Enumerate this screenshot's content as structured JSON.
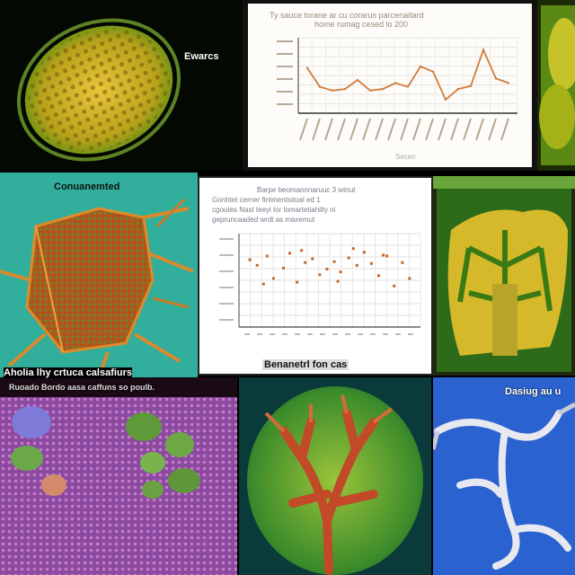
{
  "panels": {
    "p1": {
      "caption": "Ewarcs"
    },
    "p2": {
      "title_line1": "Ty sauce torane ar cu corarus parcenaitard",
      "title_line2": "home rumag cesed lo 200",
      "footer": "Secen",
      "chart_data": {
        "type": "line",
        "title": "Ty sauce torane ar cu corarus parcenaitard home rumag cesed lo 200",
        "xlabel": "Secen",
        "ylabel": "",
        "x": [
          1,
          2,
          3,
          4,
          5,
          6,
          7,
          8,
          9,
          10,
          11,
          12,
          13,
          14,
          15,
          16,
          17
        ],
        "values": [
          60,
          35,
          30,
          32,
          44,
          30,
          32,
          40,
          35,
          62,
          55,
          18,
          32,
          36,
          84,
          46,
          40
        ],
        "ylim": [
          0,
          100
        ],
        "series_color": "#d47a3a"
      }
    },
    "p4": {
      "caption": "Conuanemted"
    },
    "p5": {
      "title_line1": "Barpe beomannnaruuc 3 wtnut",
      "title_line2": "Gonhtet cerner fintmentsitual ed 1",
      "title_line3": "cgoutes Nast teeyi tor lomartetiahilty ni",
      "title_line4": "gepruncaaded wrdt as maxemut",
      "footer": "Benanetrl fon cas",
      "chart_data": {
        "type": "scatter",
        "title": "Barpe beomannnaruuc 3 wtnut",
        "xlabel": "",
        "ylabel": "",
        "xlim": [
          0,
          20
        ],
        "ylim": [
          0,
          10
        ],
        "points": [
          {
            "x": 1.2,
            "y": 7.2
          },
          {
            "x": 2.0,
            "y": 6.6
          },
          {
            "x": 3.1,
            "y": 7.6
          },
          {
            "x": 3.8,
            "y": 5.2
          },
          {
            "x": 4.9,
            "y": 6.3
          },
          {
            "x": 5.6,
            "y": 7.9
          },
          {
            "x": 6.4,
            "y": 4.8
          },
          {
            "x": 7.3,
            "y": 6.9
          },
          {
            "x": 8.1,
            "y": 7.3
          },
          {
            "x": 8.9,
            "y": 5.6
          },
          {
            "x": 9.7,
            "y": 6.2
          },
          {
            "x": 10.5,
            "y": 7.0
          },
          {
            "x": 11.2,
            "y": 5.9
          },
          {
            "x": 12.1,
            "y": 7.4
          },
          {
            "x": 13.0,
            "y": 6.6
          },
          {
            "x": 13.8,
            "y": 8.0
          },
          {
            "x": 14.6,
            "y": 6.8
          },
          {
            "x": 15.4,
            "y": 5.5
          },
          {
            "x": 16.3,
            "y": 7.6
          },
          {
            "x": 17.1,
            "y": 4.4
          },
          {
            "x": 18.0,
            "y": 6.9
          },
          {
            "x": 18.8,
            "y": 5.2
          },
          {
            "x": 2.7,
            "y": 4.6
          },
          {
            "x": 10.9,
            "y": 4.9
          },
          {
            "x": 15.9,
            "y": 7.7
          },
          {
            "x": 6.9,
            "y": 8.2
          },
          {
            "x": 12.6,
            "y": 8.4
          }
        ]
      }
    },
    "p6": {
      "caption": ""
    },
    "p7": {
      "caption_top": "Aholia lhy crtuca calsafiurs",
      "caption_bottom": "Ruoado Bordo aasa caffuns so poulb."
    },
    "p8": {
      "caption": ""
    },
    "p9": {
      "caption": "Dasiug au u"
    }
  },
  "colors": {
    "teal": "#2fb7a6",
    "blue": "#1f58c9",
    "yellow": "#e2c12a",
    "orange_line": "#d47a3a"
  }
}
